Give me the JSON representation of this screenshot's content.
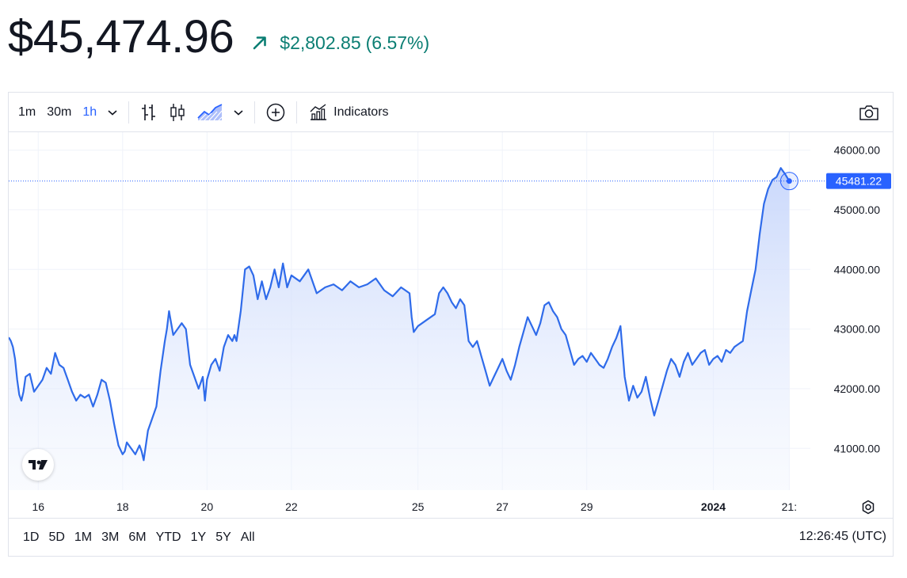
{
  "header": {
    "price": "$45,474.96",
    "change": "$2,802.85",
    "change_pct": "(6.57%)",
    "change_icon": "arrow-up-right-icon"
  },
  "toolbar": {
    "intervals": [
      "1m",
      "30m",
      "1h"
    ],
    "active_interval": "1h",
    "indicators_label": "Indicators"
  },
  "colors": {
    "accent": "#2962ff",
    "line": "#2f6bea",
    "positive": "#0b7e73",
    "grid": "#f0f3fa",
    "area_top": "#cfdcfb"
  },
  "chart_data": {
    "type": "area",
    "current_value_label": "45481.22",
    "current_value": 45481.22,
    "ylim": [
      40300,
      46300
    ],
    "y_ticks": [
      "46000.00",
      "45000.00",
      "44000.00",
      "43000.00",
      "42000.00",
      "41000.00"
    ],
    "y_tick_values": [
      46000,
      45000,
      44000,
      43000,
      42000,
      41000
    ],
    "x_ticks": [
      "16",
      "18",
      "20",
      "22",
      "25",
      "27",
      "29",
      "2024",
      "21:"
    ],
    "x_tick_days": [
      16,
      18,
      20,
      22,
      25,
      27,
      29,
      32,
      33.8
    ],
    "x_range_days": [
      15.3,
      34.3
    ],
    "series": [
      {
        "x_days": [
          15.3,
          15.35,
          15.4,
          15.45,
          15.5,
          15.55,
          15.6,
          15.65,
          15.7,
          15.8,
          15.9,
          16.0,
          16.1,
          16.2,
          16.3,
          16.4,
          16.5,
          16.6,
          16.7,
          16.8,
          16.9,
          17.0,
          17.1,
          17.2,
          17.3,
          17.4,
          17.5,
          17.6,
          17.7,
          17.8,
          17.9,
          18.0,
          18.05,
          18.1,
          18.2,
          18.3,
          18.4,
          18.45,
          18.5,
          18.6,
          18.7,
          18.8,
          18.9,
          19.0,
          19.05,
          19.1,
          19.2,
          19.3,
          19.4,
          19.5,
          19.6,
          19.7,
          19.8,
          19.9,
          19.95,
          20.0,
          20.1,
          20.2,
          20.3,
          20.4,
          20.5,
          20.6,
          20.65,
          20.7,
          20.8,
          20.9,
          21.0,
          21.1,
          21.2,
          21.3,
          21.4,
          21.5,
          21.6,
          21.7,
          21.8,
          21.9,
          22.0,
          22.2,
          22.4,
          22.6,
          22.8,
          23.0,
          23.2,
          23.4,
          23.6,
          23.8,
          24.0,
          24.2,
          24.4,
          24.6,
          24.8,
          24.85,
          24.9,
          25.0,
          25.2,
          25.4,
          25.5,
          25.6,
          25.7,
          25.8,
          25.9,
          26.0,
          26.1,
          26.2,
          26.3,
          26.4,
          26.5,
          26.6,
          26.7,
          26.8,
          26.9,
          27.0,
          27.1,
          27.2,
          27.3,
          27.4,
          27.5,
          27.6,
          27.7,
          27.8,
          27.9,
          28.0,
          28.1,
          28.2,
          28.3,
          28.4,
          28.5,
          28.6,
          28.7,
          28.8,
          28.9,
          29.0,
          29.1,
          29.2,
          29.3,
          29.4,
          29.5,
          29.6,
          29.7,
          29.8,
          29.9,
          30.0,
          30.1,
          30.2,
          30.3,
          30.4,
          30.5,
          30.6,
          30.7,
          30.8,
          30.9,
          31.0,
          31.1,
          31.2,
          31.3,
          31.4,
          31.5,
          31.6,
          31.7,
          31.8,
          31.9,
          32.0,
          32.1,
          32.2,
          32.3,
          32.4,
          32.5,
          32.6,
          32.7,
          32.8,
          32.9,
          33.0,
          33.1,
          33.2,
          33.3,
          33.4,
          33.5,
          33.6,
          33.7,
          33.8
        ],
        "y": [
          42860,
          42800,
          42700,
          42500,
          42150,
          41900,
          41800,
          41950,
          42200,
          42250,
          41950,
          42050,
          42150,
          42350,
          42250,
          42600,
          42400,
          42350,
          42150,
          41950,
          41800,
          41900,
          41850,
          41900,
          41700,
          41900,
          42150,
          42100,
          41800,
          41400,
          41050,
          40900,
          40950,
          41100,
          41000,
          40900,
          41050,
          40950,
          40800,
          41300,
          41500,
          41700,
          42300,
          42800,
          43000,
          43300,
          42900,
          43000,
          43100,
          43000,
          42400,
          42200,
          42000,
          42200,
          41800,
          42150,
          42400,
          42500,
          42300,
          42700,
          42900,
          42800,
          42900,
          42800,
          43300,
          44000,
          44050,
          43900,
          43500,
          43800,
          43500,
          43700,
          44000,
          43700,
          44100,
          43700,
          43900,
          43800,
          44000,
          43600,
          43700,
          43750,
          43650,
          43800,
          43700,
          43750,
          43850,
          43650,
          43550,
          43700,
          43600,
          43200,
          42950,
          43050,
          43150,
          43250,
          43600,
          43700,
          43600,
          43450,
          43350,
          43500,
          43400,
          42800,
          42700,
          42800,
          42550,
          42300,
          42050,
          42200,
          42350,
          42500,
          42300,
          42150,
          42400,
          42700,
          42950,
          43200,
          43050,
          42900,
          43100,
          43400,
          43450,
          43300,
          43200,
          43000,
          42900,
          42650,
          42400,
          42500,
          42550,
          42450,
          42600,
          42500,
          42400,
          42350,
          42500,
          42700,
          42850,
          43050,
          42200,
          41800,
          42050,
          41850,
          41950,
          42200,
          41850,
          41550,
          41800,
          42050,
          42300,
          42500,
          42400,
          42200,
          42450,
          42600,
          42400,
          42500,
          42600,
          42650,
          42400,
          42500,
          42550,
          42450,
          42650,
          42600,
          42700,
          42750,
          42800,
          43300,
          43650,
          44000,
          44600,
          45100,
          45350,
          45500,
          45550,
          45700,
          45600,
          45481.22
        ]
      }
    ]
  },
  "bottom_bar": {
    "ranges": [
      "1D",
      "5D",
      "1M",
      "3M",
      "6M",
      "YTD",
      "1Y",
      "5Y",
      "All"
    ],
    "clock": "12:26:45 (UTC)"
  },
  "icons": {
    "logo": "tradingview-logo",
    "camera": "camera-icon",
    "settings": "gear-icon"
  }
}
